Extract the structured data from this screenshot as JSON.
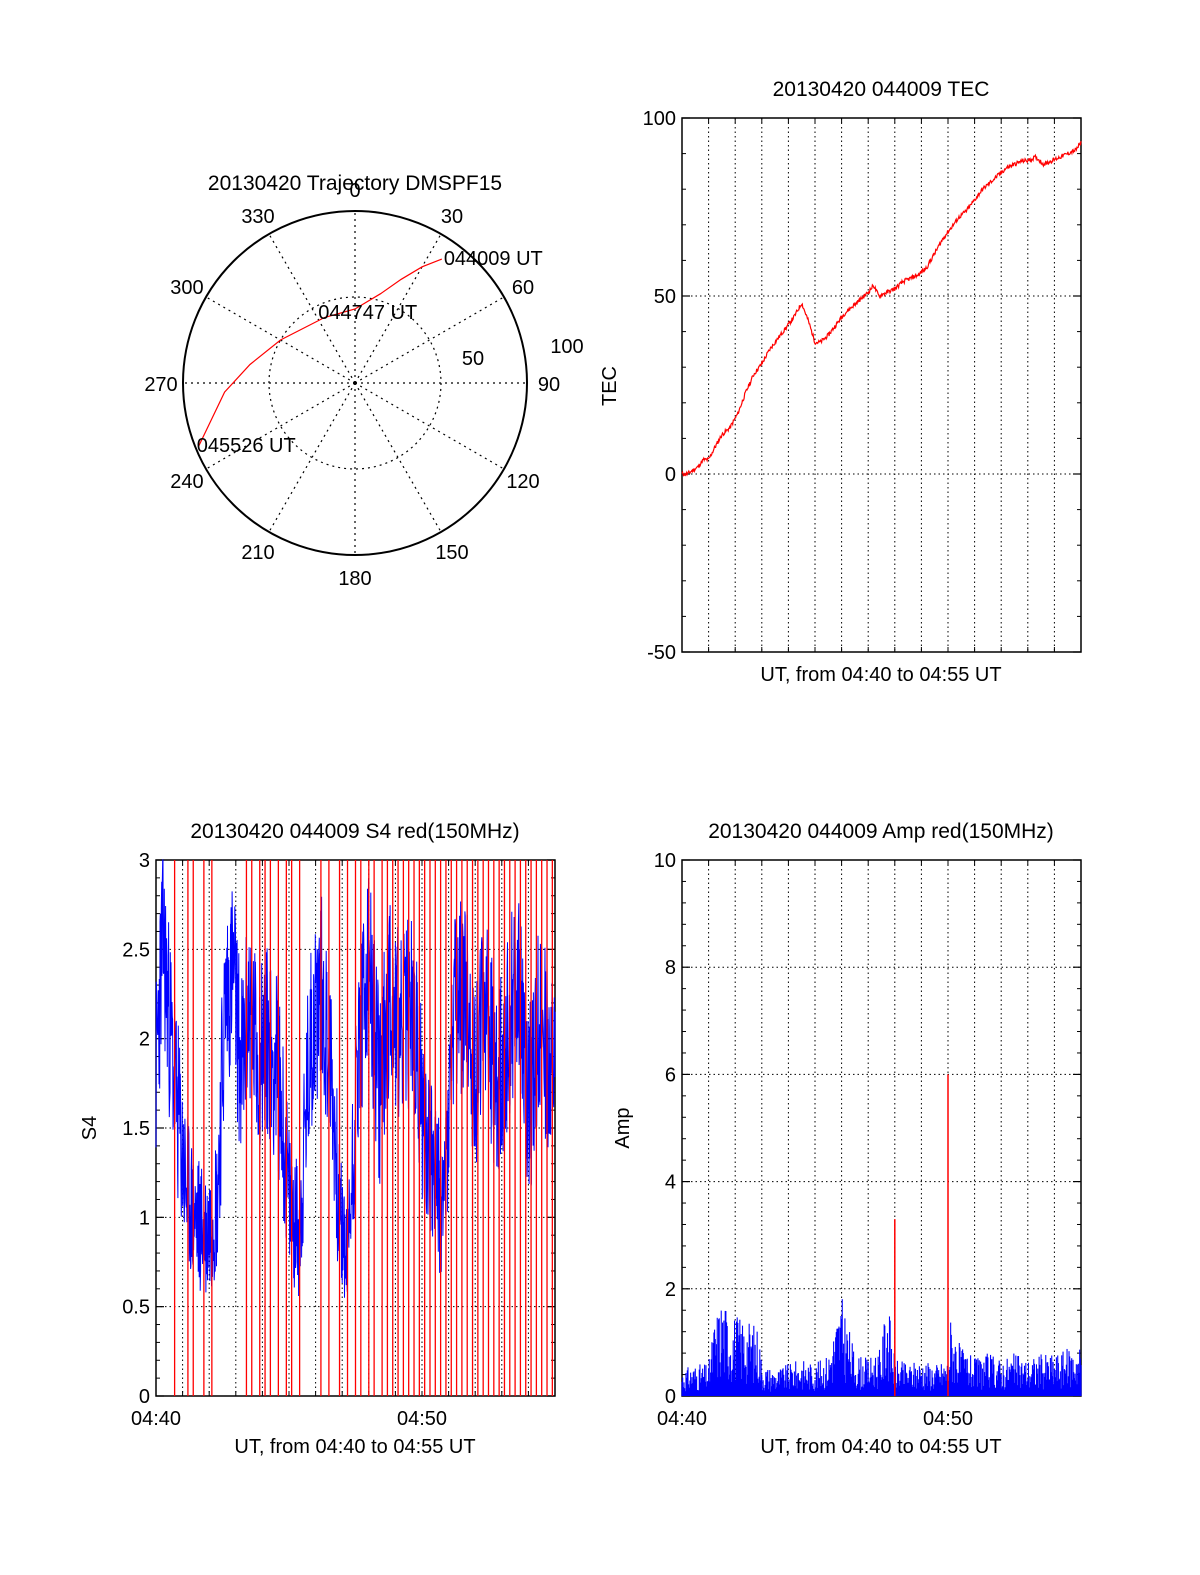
{
  "colors": {
    "trace_red": "#ff0000",
    "trace_blue": "#0000ff",
    "axes": "#000000",
    "grid": "#000000",
    "background": "#ffffff"
  },
  "chart_data": [
    {
      "id": "trajectory",
      "type": "polar",
      "title": "20130420 Trajectory DMSPF15",
      "angle_labels": [
        "0",
        "30",
        "60",
        "90",
        "120",
        "150",
        "180",
        "210",
        "240",
        "270",
        "300",
        "330"
      ],
      "radial_labels": [
        "50",
        "100"
      ],
      "rlim": [
        0,
        100
      ],
      "grid": true,
      "track": {
        "color": "red",
        "points": [
          {
            "az": 35,
            "r": 88
          },
          {
            "az": 30,
            "r": 78
          },
          {
            "az": 24,
            "r": 66
          },
          {
            "az": 16,
            "r": 54
          },
          {
            "az": 0,
            "r": 43
          },
          {
            "az": 335,
            "r": 42
          },
          {
            "az": 300,
            "r": 50
          },
          {
            "az": 280,
            "r": 62
          },
          {
            "az": 266,
            "r": 76
          },
          {
            "az": 248,
            "r": 98
          }
        ]
      },
      "annotations": [
        {
          "text": "044009 UT",
          "az": 35,
          "r": 88
        },
        {
          "text": "044747 UT",
          "az": 12,
          "r": 37
        },
        {
          "text": "045526 UT",
          "az": 248,
          "r": 98
        }
      ]
    },
    {
      "id": "tec",
      "type": "line",
      "title": "20130420 044009 TEC",
      "xlabel": "UT, from 04:40 to 04:55 UT",
      "ylabel": "TEC",
      "xlim": [
        0,
        15
      ],
      "ylim": [
        -50,
        100
      ],
      "yticks": [
        -50,
        0,
        50,
        100
      ],
      "grid": true,
      "series": [
        {
          "color": "red",
          "x": [
            0,
            0.2,
            0.4,
            0.6,
            0.8,
            1.0,
            1.2,
            1.5,
            1.8,
            2.1,
            2.4,
            2.7,
            3.0,
            3.3,
            3.6,
            3.9,
            4.2,
            4.5,
            4.75,
            5.0,
            5.2,
            5.35,
            5.5,
            5.8,
            6.1,
            6.4,
            6.7,
            7.0,
            7.2,
            7.4,
            7.7,
            8.0,
            8.3,
            8.6,
            8.9,
            9.2,
            9.5,
            9.8,
            10.1,
            10.4,
            10.7,
            11.0,
            11.3,
            11.6,
            11.9,
            12.2,
            12.5,
            12.8,
            13.0,
            13.3,
            13.6,
            13.9,
            14.2,
            14.5,
            14.8,
            15.0
          ],
          "y": [
            0,
            0,
            1,
            2,
            4,
            4,
            7,
            11,
            13,
            17,
            23,
            28,
            31,
            35,
            38,
            41,
            44,
            48,
            43,
            37,
            37,
            38,
            39,
            42,
            45,
            47,
            49,
            51,
            53,
            50,
            51,
            52,
            54,
            55,
            56,
            58,
            62,
            66,
            69,
            72,
            74,
            77,
            80,
            82,
            84,
            86,
            87,
            88,
            88,
            89,
            87,
            88,
            89,
            90,
            91,
            93
          ]
        }
      ]
    },
    {
      "id": "s4",
      "type": "line",
      "title": "20130420 044009 S4 red(150MHz)",
      "xlabel": "UT, from 04:40 to 04:55 UT",
      "ylabel": "S4",
      "xlim": [
        0,
        15
      ],
      "ylim": [
        0,
        3
      ],
      "yticks": [
        0,
        0.5,
        1,
        1.5,
        2,
        2.5,
        3
      ],
      "xticks": [
        0,
        10
      ],
      "xticklabels": [
        "04:40",
        "04:50"
      ],
      "grid": true,
      "series": [
        {
          "color": "blue",
          "x": [
            0,
            0.25,
            0.5,
            0.8,
            1.1,
            1.4,
            1.7,
            1.9,
            2.1,
            2.3,
            2.6,
            2.9,
            3.2,
            3.5,
            3.8,
            4.2,
            4.6,
            5.0,
            5.4,
            5.8,
            6.2,
            6.6,
            6.9,
            7.2,
            7.6,
            8.0,
            8.4,
            8.8,
            9.2,
            9.6,
            10.0,
            10.4,
            10.8,
            11.2,
            11.6,
            12.0,
            12.4,
            12.8,
            13.2,
            13.6,
            14.0,
            14.4,
            14.8,
            15.0
          ],
          "y": [
            1.8,
            2.6,
            2.1,
            1.6,
            1.2,
            1.0,
            0.95,
            0.9,
            1.0,
            1.1,
            2.2,
            2.4,
            1.8,
            2.2,
            1.9,
            2.0,
            1.8,
            1.1,
            0.9,
            2.0,
            2.3,
            1.8,
            1.0,
            0.75,
            1.9,
            2.4,
            1.7,
            2.3,
            2.0,
            2.2,
            1.6,
            1.3,
            1.0,
            2.1,
            2.3,
            1.8,
            2.2,
            1.7,
            2.0,
            2.4,
            1.6,
            2.1,
            1.9,
            1.8
          ]
        },
        {
          "color": "red",
          "type": "spikes",
          "x": [
            0.7,
            1.2,
            1.4,
            1.8,
            2.1,
            3.4,
            3.6,
            3.9,
            4.1,
            4.3,
            4.6,
            4.9,
            5.1,
            5.4,
            6.2,
            6.5,
            6.9,
            7.2,
            7.5,
            7.7,
            8.0,
            8.2,
            8.5,
            8.7,
            8.9,
            9.1,
            9.3,
            9.5,
            9.7,
            9.9,
            10.1,
            10.3,
            10.5,
            10.7,
            10.9,
            11.1,
            11.3,
            11.5,
            11.7,
            11.9,
            12.1,
            12.3,
            12.5,
            12.7,
            12.9,
            13.1,
            13.3,
            13.5,
            13.7,
            13.9,
            14.1,
            14.3,
            14.5,
            14.7,
            14.9
          ],
          "y": [
            3,
            3,
            3,
            3,
            3,
            3,
            3,
            3,
            3,
            3,
            3,
            3,
            3,
            3,
            3,
            3,
            3,
            3,
            3,
            3,
            3,
            3,
            3,
            3,
            3,
            3,
            3,
            3,
            3,
            3,
            3,
            3,
            3,
            3,
            3,
            3,
            3,
            3,
            3,
            3,
            3,
            3,
            3,
            3,
            3,
            3,
            3,
            3,
            3,
            3,
            3,
            3,
            3,
            3,
            3
          ]
        }
      ]
    },
    {
      "id": "amp",
      "type": "line",
      "title": "20130420 044009 Amp red(150MHz)",
      "xlabel": "UT, from 04:40 to 04:55 UT",
      "ylabel": "Amp",
      "xlim": [
        0,
        15
      ],
      "ylim": [
        0,
        10
      ],
      "yticks": [
        0,
        2,
        4,
        6,
        8,
        10
      ],
      "xticks": [
        0,
        10
      ],
      "xticklabels": [
        "04:40",
        "04:50"
      ],
      "grid": true,
      "series": [
        {
          "color": "blue",
          "x": [
            0,
            0.5,
            1.0,
            1.2,
            1.5,
            1.8,
            2.2,
            2.6,
            2.9,
            3.0,
            3.5,
            4.0,
            4.5,
            5.0,
            5.5,
            5.8,
            6.0,
            6.5,
            7.0,
            7.5,
            7.7,
            8.0,
            8.5,
            9.0,
            9.5,
            10.0,
            10.1,
            10.5,
            11.0,
            11.5,
            12.0,
            12.5,
            13.0,
            13.5,
            14.0,
            14.5,
            15.0
          ],
          "y": [
            0.5,
            0.6,
            0.6,
            1.4,
            1.9,
            1.6,
            1.5,
            1.4,
            1.3,
            0.6,
            0.5,
            0.6,
            0.7,
            0.6,
            0.8,
            1.5,
            1.9,
            0.8,
            0.7,
            0.9,
            2.0,
            0.7,
            0.6,
            0.7,
            0.6,
            0.7,
            1.5,
            0.9,
            0.7,
            0.8,
            0.7,
            0.8,
            0.7,
            0.8,
            0.8,
            0.9,
            1.0
          ]
        },
        {
          "color": "red",
          "type": "spikes",
          "x": [
            8.0,
            10.0
          ],
          "y": [
            3.3,
            6.0
          ]
        }
      ]
    }
  ]
}
